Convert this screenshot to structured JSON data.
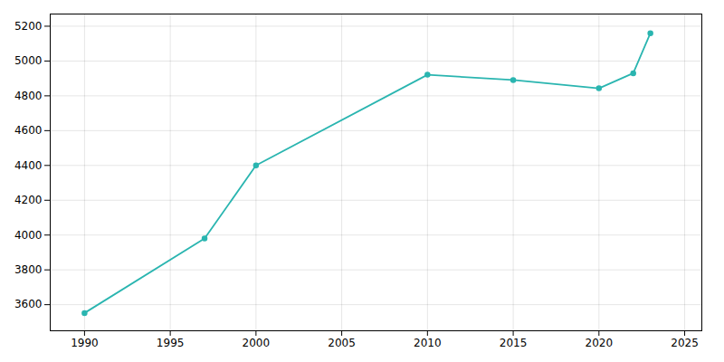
{
  "chart_data": {
    "type": "line",
    "x": [
      1990,
      1997,
      2000,
      2010,
      2015,
      2020,
      2022,
      2023
    ],
    "values": [
      3552,
      3980,
      4400,
      4921,
      4891,
      4843,
      4930,
      5160
    ],
    "color": "#2ab5b0",
    "marker": "o",
    "xlim": [
      1988,
      2026
    ],
    "ylim": [
      3450,
      5270
    ],
    "xticks": [
      1990,
      1995,
      2000,
      2005,
      2010,
      2015,
      2020,
      2025
    ],
    "yticks": [
      3600,
      3800,
      4000,
      4200,
      4400,
      4600,
      4800,
      5000,
      5200
    ],
    "grid": true
  }
}
